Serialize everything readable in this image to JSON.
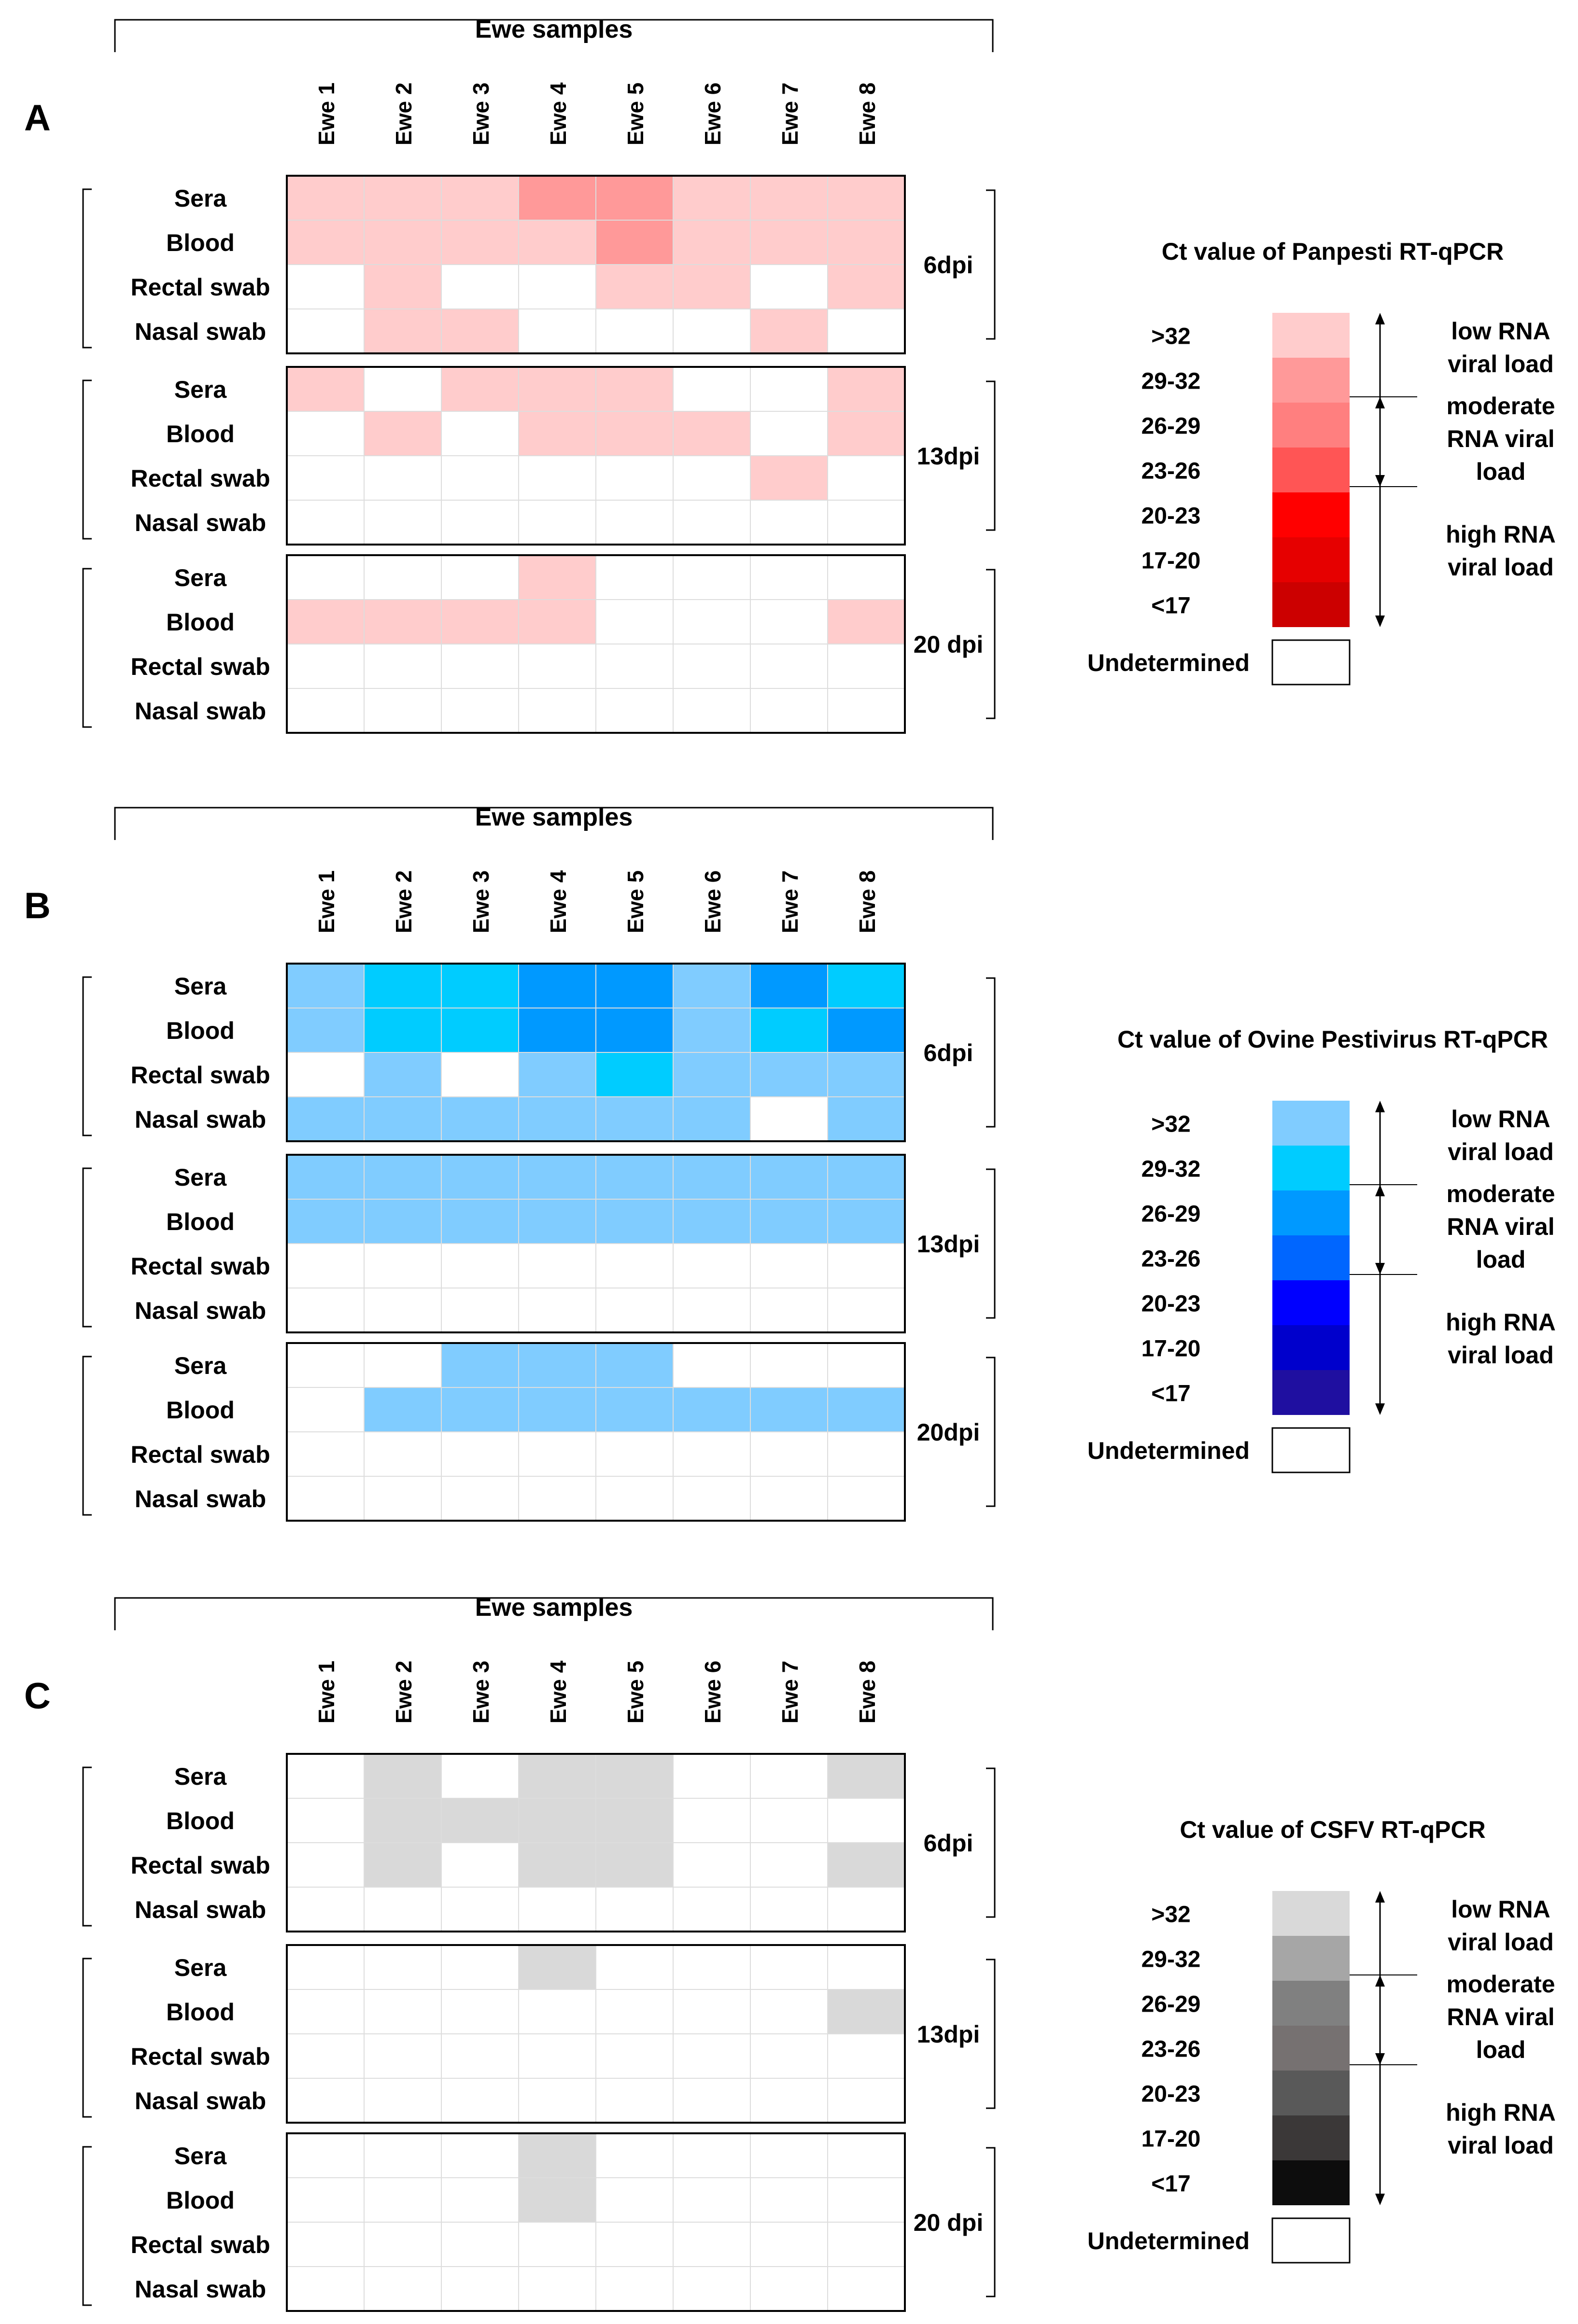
{
  "figure": {
    "columns": [
      "Ewe 1",
      "Ewe 2",
      "Ewe 3",
      "Ewe 4",
      "Ewe 5",
      "Ewe 6",
      "Ewe 7",
      "Ewe 8"
    ],
    "rows": [
      "Sera",
      "Blood",
      "Rectal swab",
      "Nasal swab"
    ],
    "group_header": "Ewe samples",
    "legend_common": {
      "bins": [
        ">32",
        "29-32",
        "26-29",
        "23-26",
        "20-23",
        "17-20",
        "<17"
      ],
      "load_low": [
        "low RNA",
        "viral load"
      ],
      "load_moderate": [
        "moderate",
        "RNA viral",
        "load"
      ],
      "load_high": [
        "high RNA",
        "viral load"
      ],
      "undetermined": "Undetermined"
    }
  },
  "chart_data": [
    {
      "type": "heatmap",
      "panel": "A",
      "legend_title": "Ct value of Panpesti RT-qPCR",
      "bin_colors": [
        "#ffcccc",
        "#ff9999",
        "#ff7f7f",
        "#ff5555",
        "#ff0000",
        "#e60000",
        "#cc0000"
      ],
      "undetermined_color": "#ffffff",
      "timepoints": [
        {
          "label": "6dpi",
          "grid": [
            [
              0,
              0,
              0,
              1,
              1,
              0,
              0,
              0
            ],
            [
              0,
              0,
              0,
              0,
              1,
              0,
              0,
              0
            ],
            [
              null,
              0,
              null,
              null,
              0,
              0,
              null,
              0
            ],
            [
              null,
              0,
              0,
              null,
              null,
              null,
              0,
              null
            ]
          ]
        },
        {
          "label": "13dpi",
          "grid": [
            [
              0,
              null,
              0,
              0,
              0,
              null,
              null,
              0
            ],
            [
              null,
              0,
              null,
              0,
              0,
              0,
              null,
              0
            ],
            [
              null,
              null,
              null,
              null,
              null,
              null,
              0,
              null
            ],
            [
              null,
              null,
              null,
              null,
              null,
              null,
              null,
              null
            ]
          ]
        },
        {
          "label": "20 dpi",
          "grid": [
            [
              null,
              null,
              null,
              0,
              null,
              null,
              null,
              null
            ],
            [
              0,
              0,
              0,
              0,
              null,
              null,
              null,
              0
            ],
            [
              null,
              null,
              null,
              null,
              null,
              null,
              null,
              null
            ],
            [
              null,
              null,
              null,
              null,
              null,
              null,
              null,
              null
            ]
          ]
        }
      ]
    },
    {
      "type": "heatmap",
      "panel": "B",
      "legend_title": "Ct value of Ovine Pestivirus RT-qPCR",
      "bin_colors": [
        "#80ccff",
        "#00ccff",
        "#0099ff",
        "#0066ff",
        "#0000ff",
        "#0000cc",
        "#1f0fa0"
      ],
      "undetermined_color": "#ffffff",
      "timepoints": [
        {
          "label": "6dpi",
          "grid": [
            [
              0,
              1,
              1,
              2,
              2,
              0,
              2,
              1
            ],
            [
              0,
              1,
              1,
              2,
              2,
              0,
              1,
              2
            ],
            [
              null,
              0,
              null,
              0,
              1,
              0,
              0,
              0
            ],
            [
              0,
              0,
              0,
              0,
              0,
              0,
              null,
              0
            ]
          ]
        },
        {
          "label": "13dpi",
          "grid": [
            [
              0,
              0,
              0,
              0,
              0,
              0,
              0,
              0
            ],
            [
              0,
              0,
              0,
              0,
              0,
              0,
              0,
              0
            ],
            [
              null,
              null,
              null,
              null,
              null,
              null,
              null,
              null
            ],
            [
              null,
              null,
              null,
              null,
              null,
              null,
              null,
              null
            ]
          ]
        },
        {
          "label": "20dpi",
          "grid": [
            [
              null,
              null,
              0,
              0,
              0,
              null,
              null,
              null
            ],
            [
              null,
              0,
              0,
              0,
              0,
              0,
              0,
              0
            ],
            [
              null,
              null,
              null,
              null,
              null,
              null,
              null,
              null
            ],
            [
              null,
              null,
              null,
              null,
              null,
              null,
              null,
              null
            ]
          ]
        }
      ]
    },
    {
      "type": "heatmap",
      "panel": "C",
      "legend_title": "Ct value of CSFV RT-qPCR",
      "bin_colors": [
        "#d9d9d9",
        "#a6a6a6",
        "#808080",
        "#767171",
        "#595959",
        "#3b3838",
        "#0d0d0d"
      ],
      "undetermined_color": "#ffffff",
      "timepoints": [
        {
          "label": "6dpi",
          "grid": [
            [
              null,
              0,
              null,
              0,
              0,
              null,
              null,
              0
            ],
            [
              null,
              0,
              0,
              0,
              0,
              null,
              null,
              null
            ],
            [
              null,
              0,
              null,
              0,
              0,
              null,
              null,
              0
            ],
            [
              null,
              null,
              null,
              null,
              null,
              null,
              null,
              null
            ]
          ]
        },
        {
          "label": "13dpi",
          "grid": [
            [
              null,
              null,
              null,
              0,
              null,
              null,
              null,
              null
            ],
            [
              null,
              null,
              null,
              null,
              null,
              null,
              null,
              0
            ],
            [
              null,
              null,
              null,
              null,
              null,
              null,
              null,
              null
            ],
            [
              null,
              null,
              null,
              null,
              null,
              null,
              null,
              null
            ]
          ]
        },
        {
          "label": "20 dpi",
          "grid": [
            [
              null,
              null,
              null,
              0,
              null,
              null,
              null,
              null
            ],
            [
              null,
              null,
              null,
              0,
              null,
              null,
              null,
              null
            ],
            [
              null,
              null,
              null,
              null,
              null,
              null,
              null,
              null
            ],
            [
              null,
              null,
              null,
              null,
              null,
              null,
              null,
              null
            ]
          ]
        }
      ]
    }
  ]
}
